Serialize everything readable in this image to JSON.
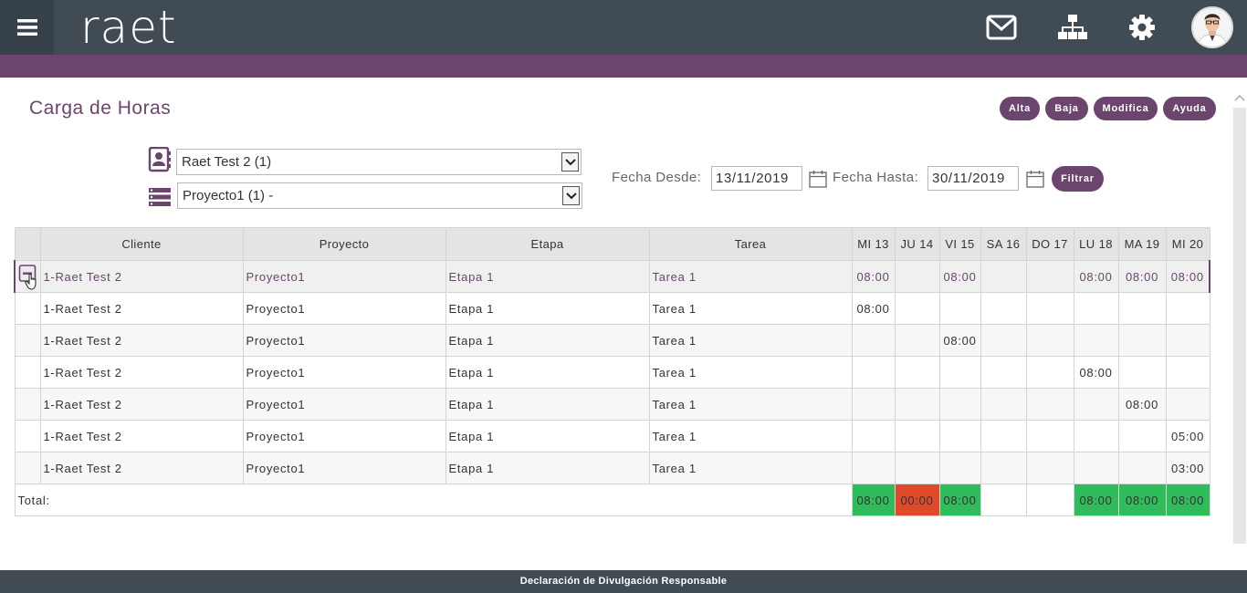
{
  "header": {
    "logo": "raet"
  },
  "page": {
    "title": "Carga de Horas"
  },
  "actions": {
    "alta": "Alta",
    "baja": "Baja",
    "modifica": "Modifica",
    "ayuda": "Ayuda"
  },
  "filters": {
    "client_select": "Raet Test 2 (1)",
    "project_select": "Proyecto1 (1) -",
    "fecha_desde_label": "Fecha Desde:",
    "fecha_desde": "13/11/2019",
    "fecha_hasta_label": "Fecha Hasta:",
    "fecha_hasta": "30/11/2019",
    "filter_button": "Filtrar"
  },
  "table": {
    "headers": [
      "Cliente",
      "Proyecto",
      "Etapa",
      "Tarea",
      "MI 13",
      "JU 14",
      "VI 15",
      "SA 16",
      "DO 17",
      "LU 18",
      "MA 19",
      "MI 20"
    ],
    "rows": [
      {
        "cliente": "1-Raet Test 2",
        "proyecto": "Proyecto1",
        "etapa": "Etapa 1",
        "tarea": "Tarea 1",
        "days": [
          "08:00",
          "",
          "08:00",
          "",
          "",
          "08:00",
          "08:00",
          "08:00"
        ]
      },
      {
        "cliente": "1-Raet Test 2",
        "proyecto": "Proyecto1",
        "etapa": "Etapa 1",
        "tarea": "Tarea 1",
        "days": [
          "08:00",
          "",
          "",
          "",
          "",
          "",
          "",
          ""
        ]
      },
      {
        "cliente": "1-Raet Test 2",
        "proyecto": "Proyecto1",
        "etapa": "Etapa 1",
        "tarea": "Tarea 1",
        "days": [
          "",
          "",
          "08:00",
          "",
          "",
          "",
          "",
          ""
        ]
      },
      {
        "cliente": "1-Raet Test 2",
        "proyecto": "Proyecto1",
        "etapa": "Etapa 1",
        "tarea": "Tarea 1",
        "days": [
          "",
          "",
          "",
          "",
          "",
          "08:00",
          "",
          ""
        ]
      },
      {
        "cliente": "1-Raet Test 2",
        "proyecto": "Proyecto1",
        "etapa": "Etapa 1",
        "tarea": "Tarea 1",
        "days": [
          "",
          "",
          "",
          "",
          "",
          "",
          "08:00",
          ""
        ]
      },
      {
        "cliente": "1-Raet Test 2",
        "proyecto": "Proyecto1",
        "etapa": "Etapa 1",
        "tarea": "Tarea 1",
        "days": [
          "",
          "",
          "",
          "",
          "",
          "",
          "",
          "05:00"
        ]
      },
      {
        "cliente": "1-Raet Test 2",
        "proyecto": "Proyecto1",
        "etapa": "Etapa 1",
        "tarea": "Tarea 1",
        "days": [
          "",
          "",
          "",
          "",
          "",
          "",
          "",
          "03:00"
        ]
      }
    ],
    "total_label": "Total:",
    "totals": [
      "08:00",
      "00:00",
      "08:00",
      "",
      "",
      "08:00",
      "08:00",
      "08:00"
    ],
    "total_status": [
      "ok",
      "missing",
      "ok",
      "none",
      "none",
      "ok",
      "ok",
      "ok"
    ]
  },
  "colors": {
    "accent": "#6b456d",
    "topbar": "#414b54",
    "ok": "#2ebd5a",
    "missing": "#e04a2a"
  },
  "footer": {
    "text": "Declaración de Divulgación Responsable"
  }
}
